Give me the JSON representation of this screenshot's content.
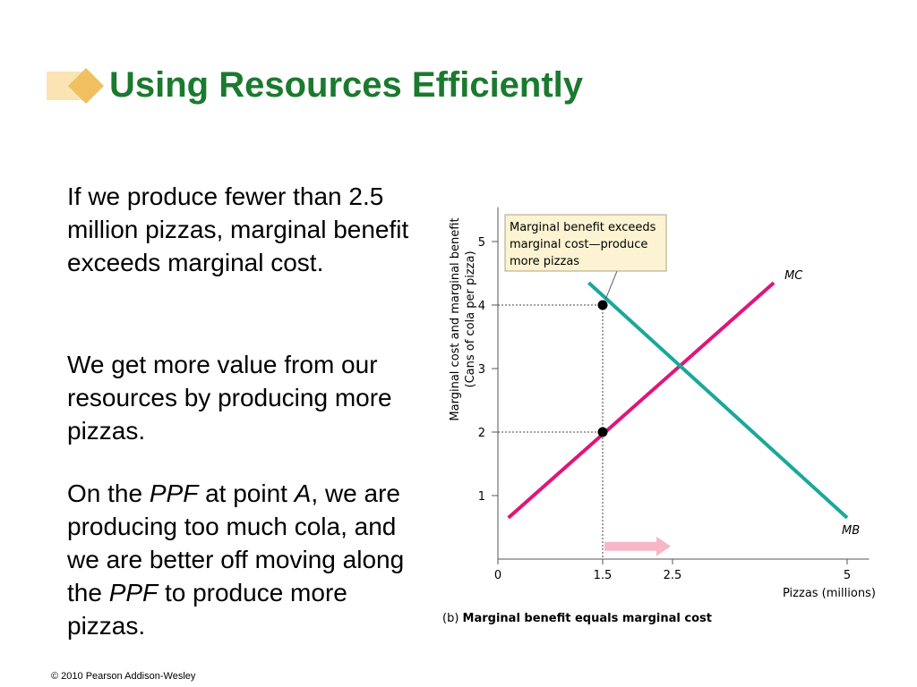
{
  "slide": {
    "title": "Using Resources Efficiently",
    "title_color": "#1a7a2e",
    "accent_color": "#f0c060",
    "paragraph1": "If we produce fewer than 2.5 million pizzas, marginal benefit exceeds marginal cost.",
    "paragraph2": "We get more value from our resources by producing more pizzas.",
    "paragraph3": {
      "p1": "On the ",
      "ppf1": "PPF",
      "p2": " at point ",
      "a": "A",
      "p3": ", we are producing too much cola, and we are better off moving along the ",
      "ppf2": "PPF",
      "p4": " to produce more pizzas."
    },
    "copyright": "© 2010 Pearson Addison-Wesley"
  },
  "chart_data": {
    "type": "line",
    "xlabel": "Pizzas (millions)",
    "ylabel_line1": "Marginal cost and marginal benefit",
    "ylabel_line2": "(Cans of cola per pizza)",
    "xlim": [
      0,
      5.25
    ],
    "ylim": [
      0,
      5.4
    ],
    "x_ticks": [
      {
        "value": 0,
        "label": "0"
      },
      {
        "value": 1.5,
        "label": "1.5"
      },
      {
        "value": 2.5,
        "label": "2.5"
      },
      {
        "value": 5,
        "label": "5"
      }
    ],
    "y_ticks": [
      {
        "value": 1,
        "label": "1"
      },
      {
        "value": 2,
        "label": "2"
      },
      {
        "value": 3,
        "label": "3"
      },
      {
        "value": 4,
        "label": "4"
      },
      {
        "value": 5,
        "label": "5"
      }
    ],
    "series": [
      {
        "name": "MC",
        "color": "#e0157a",
        "points": [
          [
            0.15,
            0.65
          ],
          [
            3.95,
            4.35
          ]
        ]
      },
      {
        "name": "MB",
        "color": "#1aa89a",
        "points": [
          [
            1.3,
            4.35
          ],
          [
            5.0,
            0.65
          ]
        ]
      }
    ],
    "points": [
      {
        "x": 1.5,
        "y": 4
      },
      {
        "x": 1.5,
        "y": 2
      }
    ],
    "arrow": {
      "from_x": 1.5,
      "to_x": 2.5,
      "y": 0.2,
      "color": "#f6b8c8"
    },
    "callout": {
      "lines": [
        "Marginal benefit exceeds",
        "marginal cost—produce",
        "more pizzas"
      ],
      "fill": "#fcf3d2"
    },
    "caption": {
      "bold": "Marginal benefit equals marginal cost",
      "prefix": "(b) "
    }
  }
}
